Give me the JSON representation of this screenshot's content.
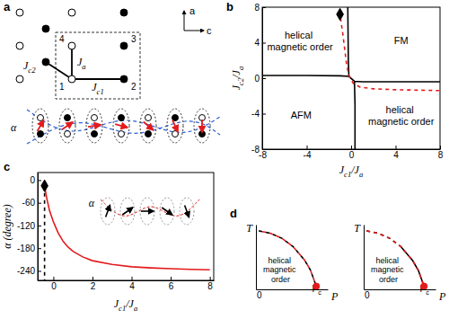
{
  "diagram": {
    "panel": "a",
    "directions": [
      "a",
      "c"
    ],
    "sites": [
      "1",
      "2",
      "3",
      "4"
    ],
    "couplings": [
      [
        {
          "text": "J"
        },
        {
          "text": "c2",
          "sub": true
        }
      ],
      [
        {
          "text": "J"
        },
        {
          "text": "a",
          "sub": true
        }
      ],
      [
        {
          "text": "J"
        },
        {
          "text": "c1",
          "sub": true
        }
      ]
    ],
    "angle": "α"
  },
  "chart_data": [
    {
      "panel": "b",
      "type": "line",
      "xlabel": [
        {
          "text": "J"
        },
        {
          "text": "c1",
          "sub": true
        },
        {
          "text": "/J"
        },
        {
          "text": "a",
          "sub": true
        }
      ],
      "ylabel": [
        {
          "text": "J"
        },
        {
          "text": "c2",
          "sub": true
        },
        {
          "text": "/J"
        },
        {
          "text": "a",
          "sub": true
        }
      ],
      "xlim": [
        -8,
        8
      ],
      "ylim": [
        -8,
        8
      ],
      "xticks": [
        -8,
        -4,
        0,
        4,
        8
      ],
      "yticks": [
        -8,
        -4,
        0,
        4,
        8
      ],
      "annotations": [
        "helical magnetic order",
        "FM",
        "AFM",
        "helical magnetic order"
      ],
      "series": [
        {
          "color": "#000000",
          "line_style": "solid",
          "x": [
            -8,
            -4,
            -1,
            -0.2,
            0.3,
            1,
            4,
            8,
            null,
            -0.2,
            -0.25,
            -0.3,
            null,
            0.3,
            0.35,
            0.35
          ],
          "values": [
            0.3,
            0.3,
            0.27,
            0.2,
            -0.35,
            -0.4,
            -0.4,
            -0.4,
            null,
            0.2,
            2,
            8,
            null,
            -0.35,
            -3,
            -8
          ]
        },
        {
          "color": "#e41a1c",
          "line_style": "dashed",
          "x": [
            -1,
            -0.75,
            -0.55,
            -0.4,
            -0.2,
            0.2,
            0.8,
            2,
            4,
            8
          ],
          "values": [
            7.2,
            5,
            3,
            1.5,
            0.3,
            -0.6,
            -1,
            -1.2,
            -1.3,
            -1.4
          ]
        },
        {
          "type": "scatter",
          "marker": "diamond",
          "color": "#000000",
          "x": [
            -1
          ],
          "values": [
            7.2
          ]
        }
      ]
    },
    {
      "panel": "c",
      "type": "line",
      "xlabel": [
        {
          "text": "J"
        },
        {
          "text": "c1",
          "sub": true
        },
        {
          "text": "/J"
        },
        {
          "text": "a",
          "sub": true
        }
      ],
      "ylabel": "α (degree)",
      "xlim": [
        -0.8,
        8.2
      ],
      "ylim": [
        -265,
        20
      ],
      "xticks": [
        0,
        2,
        4,
        6,
        8
      ],
      "yticks": [
        -240,
        -180,
        -120,
        -60,
        0
      ],
      "annotations": [
        "α"
      ],
      "series": [
        {
          "color": "#000000",
          "line_style": "dashed",
          "x": [
            -0.45,
            -0.45
          ],
          "values": [
            -15,
            -265
          ]
        },
        {
          "color": "#e41a1c",
          "line_style": "solid",
          "x": [
            -0.45,
            -0.35,
            -0.2,
            0,
            0.25,
            0.5,
            0.75,
            1,
            1.5,
            2,
            3,
            4,
            5,
            6,
            7,
            8
          ],
          "values": [
            -15,
            -45,
            -80,
            -110,
            -140,
            -162,
            -177,
            -188,
            -203,
            -213,
            -223,
            -229,
            -232,
            -234,
            -236,
            -237
          ]
        },
        {
          "type": "scatter",
          "marker": "diamond",
          "color": "#000000",
          "x": [
            -0.45
          ],
          "values": [
            -15
          ]
        }
      ]
    },
    {
      "panel": "d",
      "type": "line",
      "xlabel": "P",
      "ylabel": "T",
      "xlim": [
        -0.05,
        1.2
      ],
      "ylim": [
        -0.05,
        1
      ],
      "xticks": [
        0,
        {
          "value": 1,
          "label": [
            {
              "text": "P"
            },
            {
              "text": "c",
              "sub": true
            }
          ]
        }
      ],
      "tick_labels": "x",
      "annotations": [
        "helical magnetic order"
      ],
      "series": [
        {
          "color": "#000000",
          "line_style": "dashed",
          "x": [
            0,
            0.2,
            0.4,
            0.6,
            0.8,
            0.9,
            1
          ],
          "values": [
            0.9,
            0.86,
            0.78,
            0.64,
            0.42,
            0.26,
            0
          ]
        },
        {
          "color": "#e41a1c",
          "line_style": "dashed",
          "x": [
            0,
            0.2,
            0.4,
            0.6,
            0.8,
            0.9,
            1
          ],
          "values": [
            0.9,
            0.86,
            0.78,
            0.64,
            0.42,
            0.26,
            0
          ]
        },
        {
          "type": "scatter",
          "marker": "circle",
          "color": "#e41a1c",
          "x": [
            1
          ],
          "values": [
            0
          ]
        }
      ]
    },
    {
      "type": "line",
      "xlabel": "P",
      "ylabel": "T",
      "xlim": [
        -0.05,
        1.2
      ],
      "ylim": [
        -0.05,
        1
      ],
      "xticks": [
        0,
        {
          "value": 1,
          "label": [
            {
              "text": "P"
            },
            {
              "text": "c",
              "sub": true
            }
          ]
        }
      ],
      "tick_labels": "x",
      "annotations": [
        "helical magnetic order"
      ],
      "series": [
        {
          "color": "#000000",
          "line_style": "dashed",
          "x": [
            0,
            0.2,
            0.4,
            0.6
          ],
          "values": [
            0.9,
            0.86,
            0.78,
            0.64
          ]
        },
        {
          "color": "#000000",
          "line_style": "solid",
          "x": [
            0.6,
            0.8,
            0.9,
            1
          ],
          "values": [
            0.64,
            0.42,
            0.26,
            0
          ]
        },
        {
          "color": "#e41a1c",
          "line_style": "dashed",
          "x": [
            0,
            0.2,
            0.4,
            0.6,
            0.8,
            0.9,
            1
          ],
          "values": [
            0.9,
            0.86,
            0.78,
            0.64,
            0.42,
            0.26,
            0
          ]
        },
        {
          "type": "scatter",
          "marker": "circle",
          "color": "#e41a1c",
          "x": [
            1
          ],
          "values": [
            0
          ]
        }
      ]
    }
  ]
}
